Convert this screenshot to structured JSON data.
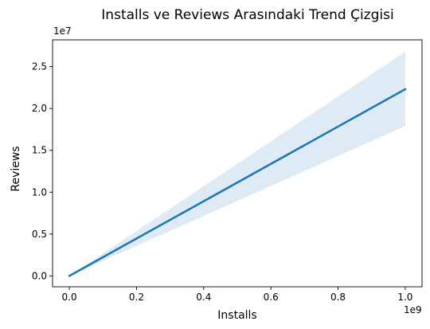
{
  "chart_data": {
    "type": "line",
    "title": "Installs ve Reviews Arasındaki Trend Çizgisi",
    "xlabel": "Installs",
    "ylabel": "Reviews",
    "x_offset_label": "1e9",
    "y_offset_label": "1e7",
    "xlim": [
      -50000000,
      1050000000
    ],
    "ylim": [
      -1300000,
      28200000
    ],
    "x_ticks": [
      0,
      200000000,
      400000000,
      600000000,
      800000000,
      1000000000
    ],
    "x_tick_labels": [
      "0.0",
      "0.2",
      "0.4",
      "0.6",
      "0.8",
      "1.0"
    ],
    "y_ticks": [
      0,
      5000000,
      10000000,
      15000000,
      20000000,
      25000000
    ],
    "y_tick_labels": [
      "0.0",
      "0.5",
      "1.0",
      "1.5",
      "2.0",
      "2.5"
    ],
    "grid": false,
    "series": [
      {
        "color": "#1f77b4",
        "x": [
          0,
          1000000000
        ],
        "y": [
          0,
          22300000
        ],
        "ci_lower": [
          0,
          17900000
        ],
        "ci_upper": [
          0,
          26800000
        ]
      }
    ]
  }
}
